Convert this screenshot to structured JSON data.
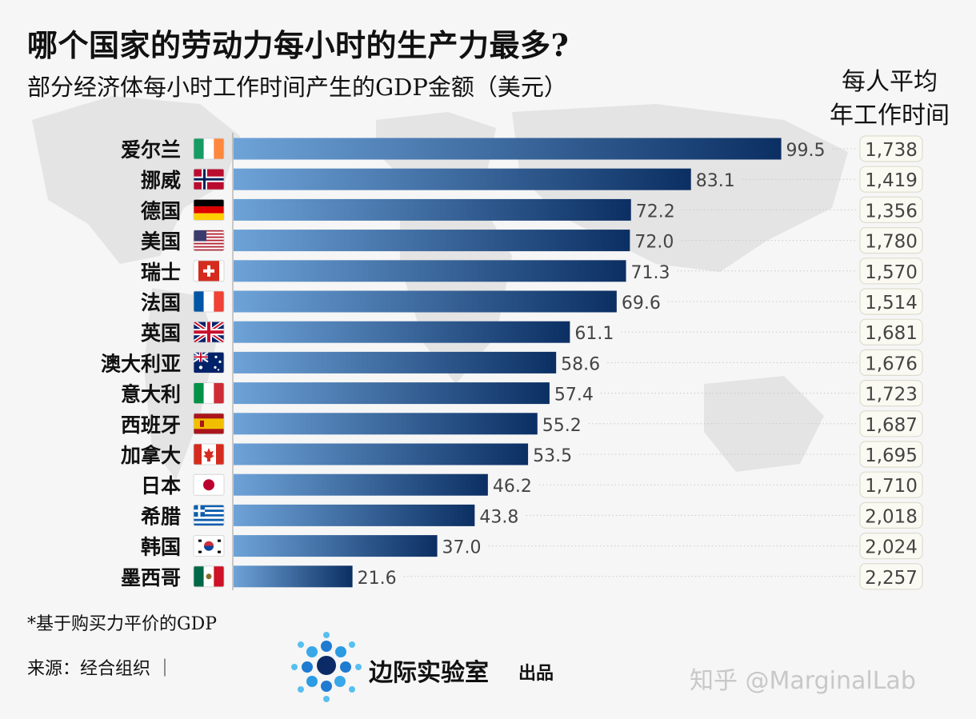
{
  "header": {
    "title": "哪个国家的劳动力每小时的生产力最多?",
    "subtitle": "部分经济体每小时工作时间产生的GDP金额（美元）",
    "hours_header_line1": "每人平均",
    "hours_header_line2": "年工作时间"
  },
  "chart_data": {
    "type": "bar",
    "orientation": "horizontal",
    "title": "哪个国家的劳动力每小时的生产力最多?",
    "subtitle": "部分经济体每小时工作时间产生的GDP金额（美元）",
    "categories": [
      "爱尔兰",
      "挪威",
      "德国",
      "美国",
      "瑞士",
      "法国",
      "英国",
      "澳大利亚",
      "意大利",
      "西班牙",
      "加拿大",
      "日本",
      "希腊",
      "韩国",
      "墨西哥"
    ],
    "flags": [
      "ireland-flag-icon",
      "norway-flag-icon",
      "germany-flag-icon",
      "usa-flag-icon",
      "switzerland-flag-icon",
      "france-flag-icon",
      "uk-flag-icon",
      "australia-flag-icon",
      "italy-flag-icon",
      "spain-flag-icon",
      "canada-flag-icon",
      "japan-flag-icon",
      "greece-flag-icon",
      "korea-flag-icon",
      "mexico-flag-icon"
    ],
    "values": [
      99.5,
      83.1,
      72.2,
      72.0,
      71.3,
      69.6,
      61.1,
      58.6,
      57.4,
      55.2,
      53.5,
      46.2,
      43.8,
      37.0,
      21.6
    ],
    "value_labels": [
      "99.5",
      "83.1",
      "72.2",
      "72.0",
      "71.3",
      "69.6",
      "61.1",
      "58.6",
      "57.4",
      "55.2",
      "53.5",
      "46.2",
      "43.8",
      "37.0",
      "21.6"
    ],
    "hours_labels": [
      "1,738",
      "1,419",
      "1,356",
      "1,780",
      "1,570",
      "1,514",
      "1,681",
      "1,676",
      "1,723",
      "1,687",
      "1,695",
      "1,710",
      "2,018",
      "2,024",
      "2,257"
    ],
    "xlim": [
      0,
      100
    ],
    "grid": false,
    "colors": {
      "bar_light": "#6ea3d8",
      "bar_dark": "#0b2f63",
      "label": "#444444",
      "badge_fill": "#fbfaf2",
      "badge_stroke": "#dcdcd0"
    }
  },
  "footer": {
    "footnote": "*基于购买力平价的GDP",
    "source": "来源：经合组织 ｜",
    "brand": "边际实验室",
    "brand_suffix": "出品",
    "watermark": "知乎 @MarginalLab"
  }
}
